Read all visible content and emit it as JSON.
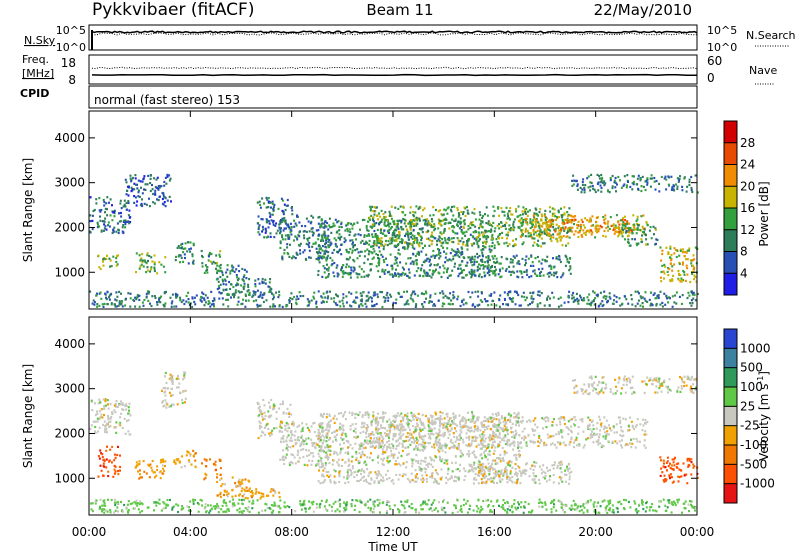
{
  "header": {
    "station": "Pykkvibaer (fitACF)",
    "beam": "Beam 11",
    "date": "22/May/2010"
  },
  "nsky_panel": {
    "left_label": "N.Sky",
    "left_ticks": [
      "10^5",
      "10^0"
    ],
    "right_ticks": [
      "10^5",
      "10^0"
    ],
    "right_label": "N.Search"
  },
  "freq_panel": {
    "left_label_line1": "Freq.",
    "left_label_line2": "[MHz]",
    "left_ticks": [
      "18",
      "8"
    ],
    "right_ticks": [
      "60",
      "0"
    ],
    "right_label": "Nave",
    "cpid_label": "CPID",
    "cpid_text": "normal (fast stereo) 153"
  },
  "chart_data": [
    {
      "type": "heatmap",
      "quantity": "power",
      "ylabel": "Slant Range [km]",
      "ylim": [
        180,
        4600
      ],
      "yticks": [
        "1000",
        "2000",
        "3000",
        "4000"
      ],
      "xlim": [
        0,
        24
      ],
      "colorbar_label": "Power [dB]",
      "colorbar_ticks": [
        "4",
        "8",
        "12",
        "16",
        "20",
        "24",
        "28"
      ],
      "colorbar_range": [
        0,
        32
      ],
      "colorbar_colors": [
        "#1e1ee6",
        "#2850b4",
        "#2e7d5a",
        "#32a03c",
        "#c8b400",
        "#f08c00",
        "#e84a00",
        "#d20000"
      ],
      "echo_regions": [
        {
          "t": [
            0.0,
            1.6
          ],
          "r": [
            1900,
            2700
          ],
          "v": 8
        },
        {
          "t": [
            0.3,
            1.2
          ],
          "r": [
            1050,
            1400
          ],
          "v": 14
        },
        {
          "t": [
            1.4,
            3.2
          ],
          "r": [
            2500,
            3200
          ],
          "v": 7
        },
        {
          "t": [
            1.8,
            3.0
          ],
          "r": [
            1000,
            1450
          ],
          "v": 14
        },
        {
          "t": [
            3.3,
            4.2
          ],
          "r": [
            1200,
            1700
          ],
          "v": 11
        },
        {
          "t": [
            4.4,
            5.2
          ],
          "r": [
            1000,
            1500
          ],
          "v": 12
        },
        {
          "t": [
            5.0,
            6.3
          ],
          "r": [
            600,
            1200
          ],
          "v": 10
        },
        {
          "t": [
            6.0,
            7.2
          ],
          "r": [
            550,
            900
          ],
          "v": 9
        },
        {
          "t": [
            6.6,
            8.0
          ],
          "r": [
            1800,
            2700
          ],
          "v": 8
        },
        {
          "t": [
            7.5,
            9.5
          ],
          "r": [
            1300,
            2300
          ],
          "v": 9
        },
        {
          "t": [
            9.0,
            16.0
          ],
          "r": [
            900,
            2200
          ],
          "v": 11
        },
        {
          "t": [
            11.0,
            19.0
          ],
          "r": [
            1600,
            2500
          ],
          "v": 14
        },
        {
          "t": [
            15.0,
            19.0
          ],
          "r": [
            900,
            1400
          ],
          "v": 10
        },
        {
          "t": [
            17.0,
            22.0
          ],
          "r": [
            1800,
            2300
          ],
          "v": 18
        },
        {
          "t": [
            18.0,
            21.5
          ],
          "r": [
            1900,
            2200
          ],
          "v": 22
        },
        {
          "t": [
            19.0,
            24.0
          ],
          "r": [
            2800,
            3200
          ],
          "v": 9
        },
        {
          "t": [
            21.0,
            22.5
          ],
          "r": [
            1600,
            2100
          ],
          "v": 12
        },
        {
          "t": [
            22.5,
            24.0
          ],
          "r": [
            800,
            1600
          ],
          "v": 18
        },
        {
          "t": [
            0.0,
            24.0
          ],
          "r": [
            250,
            600
          ],
          "v": 9
        }
      ]
    },
    {
      "type": "heatmap",
      "quantity": "velocity",
      "ylabel": "Slant Range [km]",
      "ylim": [
        180,
        4600
      ],
      "yticks": [
        "1000",
        "2000",
        "3000",
        "4000"
      ],
      "xlim": [
        0,
        24
      ],
      "xticks": [
        "00:00",
        "04:00",
        "08:00",
        "12:00",
        "16:00",
        "20:00",
        "00:00"
      ],
      "xlabel": "Time UT",
      "colorbar_label": "Velocity [m s",
      "colorbar_label_sup": "-1",
      "colorbar_label_end": "]",
      "colorbar_ticks": [
        "1000",
        "500",
        "100",
        "25",
        "-25",
        "-100",
        "-500",
        "-1000"
      ],
      "colorbar_colors": [
        "#2846d2",
        "#3c82a0",
        "#2e9b5a",
        "#5fc846",
        "#c8c8c0",
        "#f0a000",
        "#f07800",
        "#ff5000",
        "#e61414"
      ],
      "echo_regions": [
        {
          "t": [
            0.0,
            1.6
          ],
          "r": [
            2000,
            2800
          ],
          "v": 4
        },
        {
          "t": [
            0.3,
            1.2
          ],
          "r": [
            1050,
            1750
          ],
          "v": 7
        },
        {
          "t": [
            1.8,
            3.0
          ],
          "r": [
            1000,
            1450
          ],
          "v": 5
        },
        {
          "t": [
            2.8,
            3.8
          ],
          "r": [
            2600,
            3400
          ],
          "v": 4
        },
        {
          "t": [
            3.3,
            4.2
          ],
          "r": [
            1250,
            1650
          ],
          "v": 5
        },
        {
          "t": [
            4.4,
            5.2
          ],
          "r": [
            1000,
            1450
          ],
          "v": 6
        },
        {
          "t": [
            5.0,
            6.3
          ],
          "r": [
            600,
            1050
          ],
          "v": 5
        },
        {
          "t": [
            6.0,
            7.5
          ],
          "r": [
            550,
            800
          ],
          "v": 5
        },
        {
          "t": [
            6.6,
            8.0
          ],
          "r": [
            1900,
            2800
          ],
          "v": 4
        },
        {
          "t": [
            7.5,
            9.5
          ],
          "r": [
            1300,
            2300
          ],
          "v": 4
        },
        {
          "t": [
            9.0,
            17.0
          ],
          "r": [
            900,
            2500
          ],
          "v": 4
        },
        {
          "t": [
            11.0,
            22.0
          ],
          "r": [
            1700,
            2400
          ],
          "v": 4
        },
        {
          "t": [
            15.0,
            19.0
          ],
          "r": [
            900,
            1400
          ],
          "v": 4
        },
        {
          "t": [
            19.0,
            24.0
          ],
          "r": [
            2900,
            3300
          ],
          "v": 4
        },
        {
          "t": [
            22.5,
            24.0
          ],
          "r": [
            900,
            1500
          ],
          "v": 7
        },
        {
          "t": [
            0.0,
            24.0
          ],
          "r": [
            250,
            550
          ],
          "v": 3
        }
      ]
    }
  ]
}
